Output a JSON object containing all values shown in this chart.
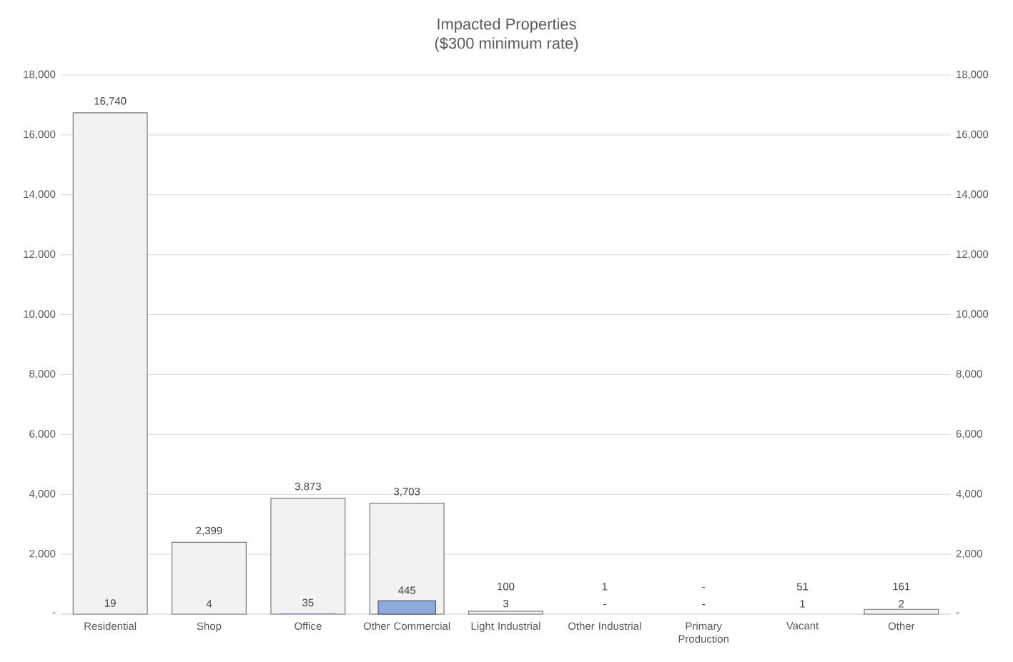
{
  "chart_data": {
    "type": "bar",
    "title": "Impacted Properties",
    "subtitle": "($300 minimum rate)",
    "categories": [
      "Residential",
      "Shop",
      "Office",
      "Other Commercial",
      "Light Industrial",
      "Other Industrial",
      "Primary Production",
      "Vacant",
      "Other"
    ],
    "series": [
      {
        "color": "#f2f2f2",
        "values": [
          16740,
          2399,
          3873,
          3703,
          100,
          1,
          0,
          51,
          161
        ],
        "value_labels": [
          "16,740",
          "2,399",
          "3,873",
          "3,703",
          "100",
          "1",
          "-",
          "51",
          "161"
        ]
      },
      {
        "color": "#8eaadb",
        "axis": "y2",
        "values": [
          19,
          4,
          35,
          445,
          3,
          0,
          0,
          1,
          2
        ],
        "value_labels": [
          "19",
          "4",
          "35",
          "445",
          "3",
          "-",
          "-",
          "1",
          "2"
        ]
      }
    ],
    "ylim": [
      0,
      18000
    ],
    "yticks": [
      {
        "value": 0,
        "label": "-"
      },
      {
        "value": 2000,
        "label": "2,000"
      },
      {
        "value": 4000,
        "label": "4,000"
      },
      {
        "value": 6000,
        "label": "6,000"
      },
      {
        "value": 8000,
        "label": "8,000"
      },
      {
        "value": 10000,
        "label": "10,000"
      },
      {
        "value": 12000,
        "label": "12,000"
      },
      {
        "value": 14000,
        "label": "14,000"
      },
      {
        "value": 16000,
        "label": "16,000"
      },
      {
        "value": 18000,
        "label": "18,000"
      }
    ],
    "y2lim": [
      0,
      18000
    ],
    "y2ticks": [
      {
        "value": 0,
        "label": "-"
      },
      {
        "value": 2000,
        "label": "2,000"
      },
      {
        "value": 4000,
        "label": "4,000"
      },
      {
        "value": 6000,
        "label": "6,000"
      },
      {
        "value": 8000,
        "label": "8,000"
      },
      {
        "value": 10000,
        "label": "10,000"
      },
      {
        "value": 12000,
        "label": "12,000"
      },
      {
        "value": 14000,
        "label": "14,000"
      },
      {
        "value": 16000,
        "label": "16,000"
      },
      {
        "value": 18000,
        "label": "18,000"
      }
    ],
    "grid": "y"
  }
}
